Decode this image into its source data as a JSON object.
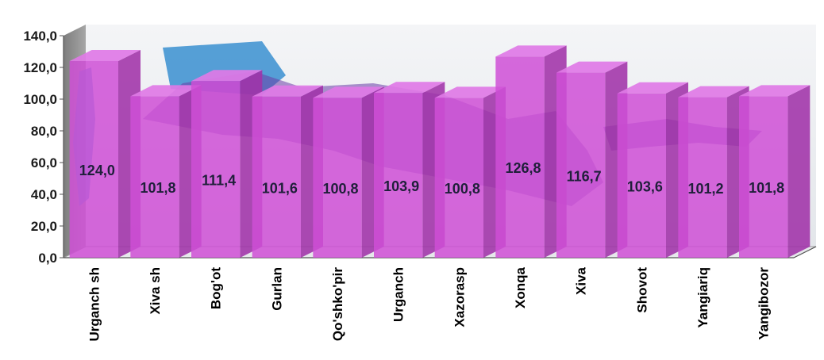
{
  "chart_data": {
    "type": "bar",
    "style": "3d-column",
    "categories": [
      "Urganch sh",
      "Xiva sh",
      "Bog'ot",
      "Gurlan",
      "Qo'shko'pir",
      "Urganch",
      "Xazorasp",
      "Xonqa",
      "Xiva",
      "Shovot",
      "Yangiariq",
      "Yangibozor"
    ],
    "values": [
      124.0,
      101.8,
      111.4,
      101.6,
      100.8,
      103.9,
      100.8,
      126.8,
      116.7,
      103.6,
      101.2,
      101.8
    ],
    "value_labels": [
      "124,0",
      "101,8",
      "111,4",
      "101,6",
      "100,8",
      "103,9",
      "100,8",
      "126,8",
      "116,7",
      "103,6",
      "101,2",
      "101,8"
    ],
    "y_ticks": [
      "0,0",
      "20,0",
      "40,0",
      "60,0",
      "80,0",
      "100,0",
      "120,0",
      "140,0"
    ],
    "ylim": [
      0,
      140
    ],
    "grid": false,
    "legend": "none",
    "colors": {
      "bar_front": "#cf4fd6",
      "bar_side": "#a032a8",
      "bar_top": "#e07ae6",
      "back_wall": "#eef0f2",
      "side_wall": "#8c8c8c",
      "map_water": "#3a8fd0",
      "map_land": "#6a3ca8"
    }
  }
}
